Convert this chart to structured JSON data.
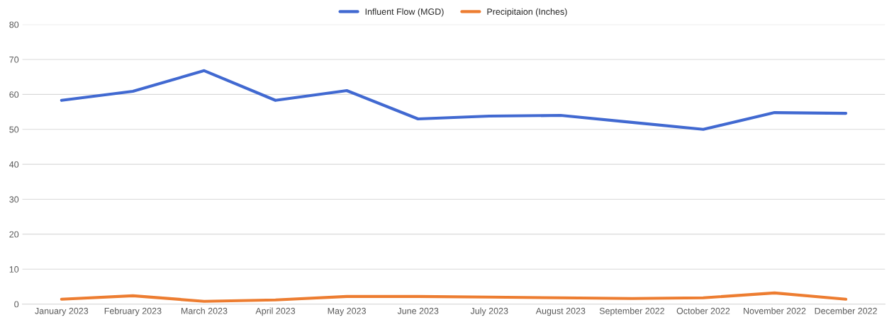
{
  "chart_data": {
    "type": "line",
    "categories": [
      "January 2023",
      "February 2023",
      "March 2023",
      "April 2023",
      "May 2023",
      "June 2023",
      "July 2023",
      "August 2023",
      "September 2022",
      "October 2022",
      "November 2022",
      "December 2022"
    ],
    "series": [
      {
        "name": "Influent Flow (MGD)",
        "color": "#4169d1",
        "values": [
          58.3,
          60.9,
          66.8,
          58.3,
          61.1,
          53.0,
          53.8,
          54.0,
          52.0,
          50.0,
          54.8,
          54.6
        ]
      },
      {
        "name": "Precipitaion (Inches)",
        "color": "#ed7d31",
        "values": [
          1.4,
          2.4,
          0.8,
          1.2,
          2.2,
          2.2,
          2.0,
          1.8,
          1.6,
          1.8,
          3.2,
          1.4
        ]
      }
    ],
    "ylim": [
      0,
      80
    ],
    "yticks": [
      0,
      10,
      20,
      30,
      40,
      50,
      60,
      70,
      80
    ],
    "grid": "y",
    "legend": "top",
    "marker": "none",
    "line_style": "solid"
  }
}
